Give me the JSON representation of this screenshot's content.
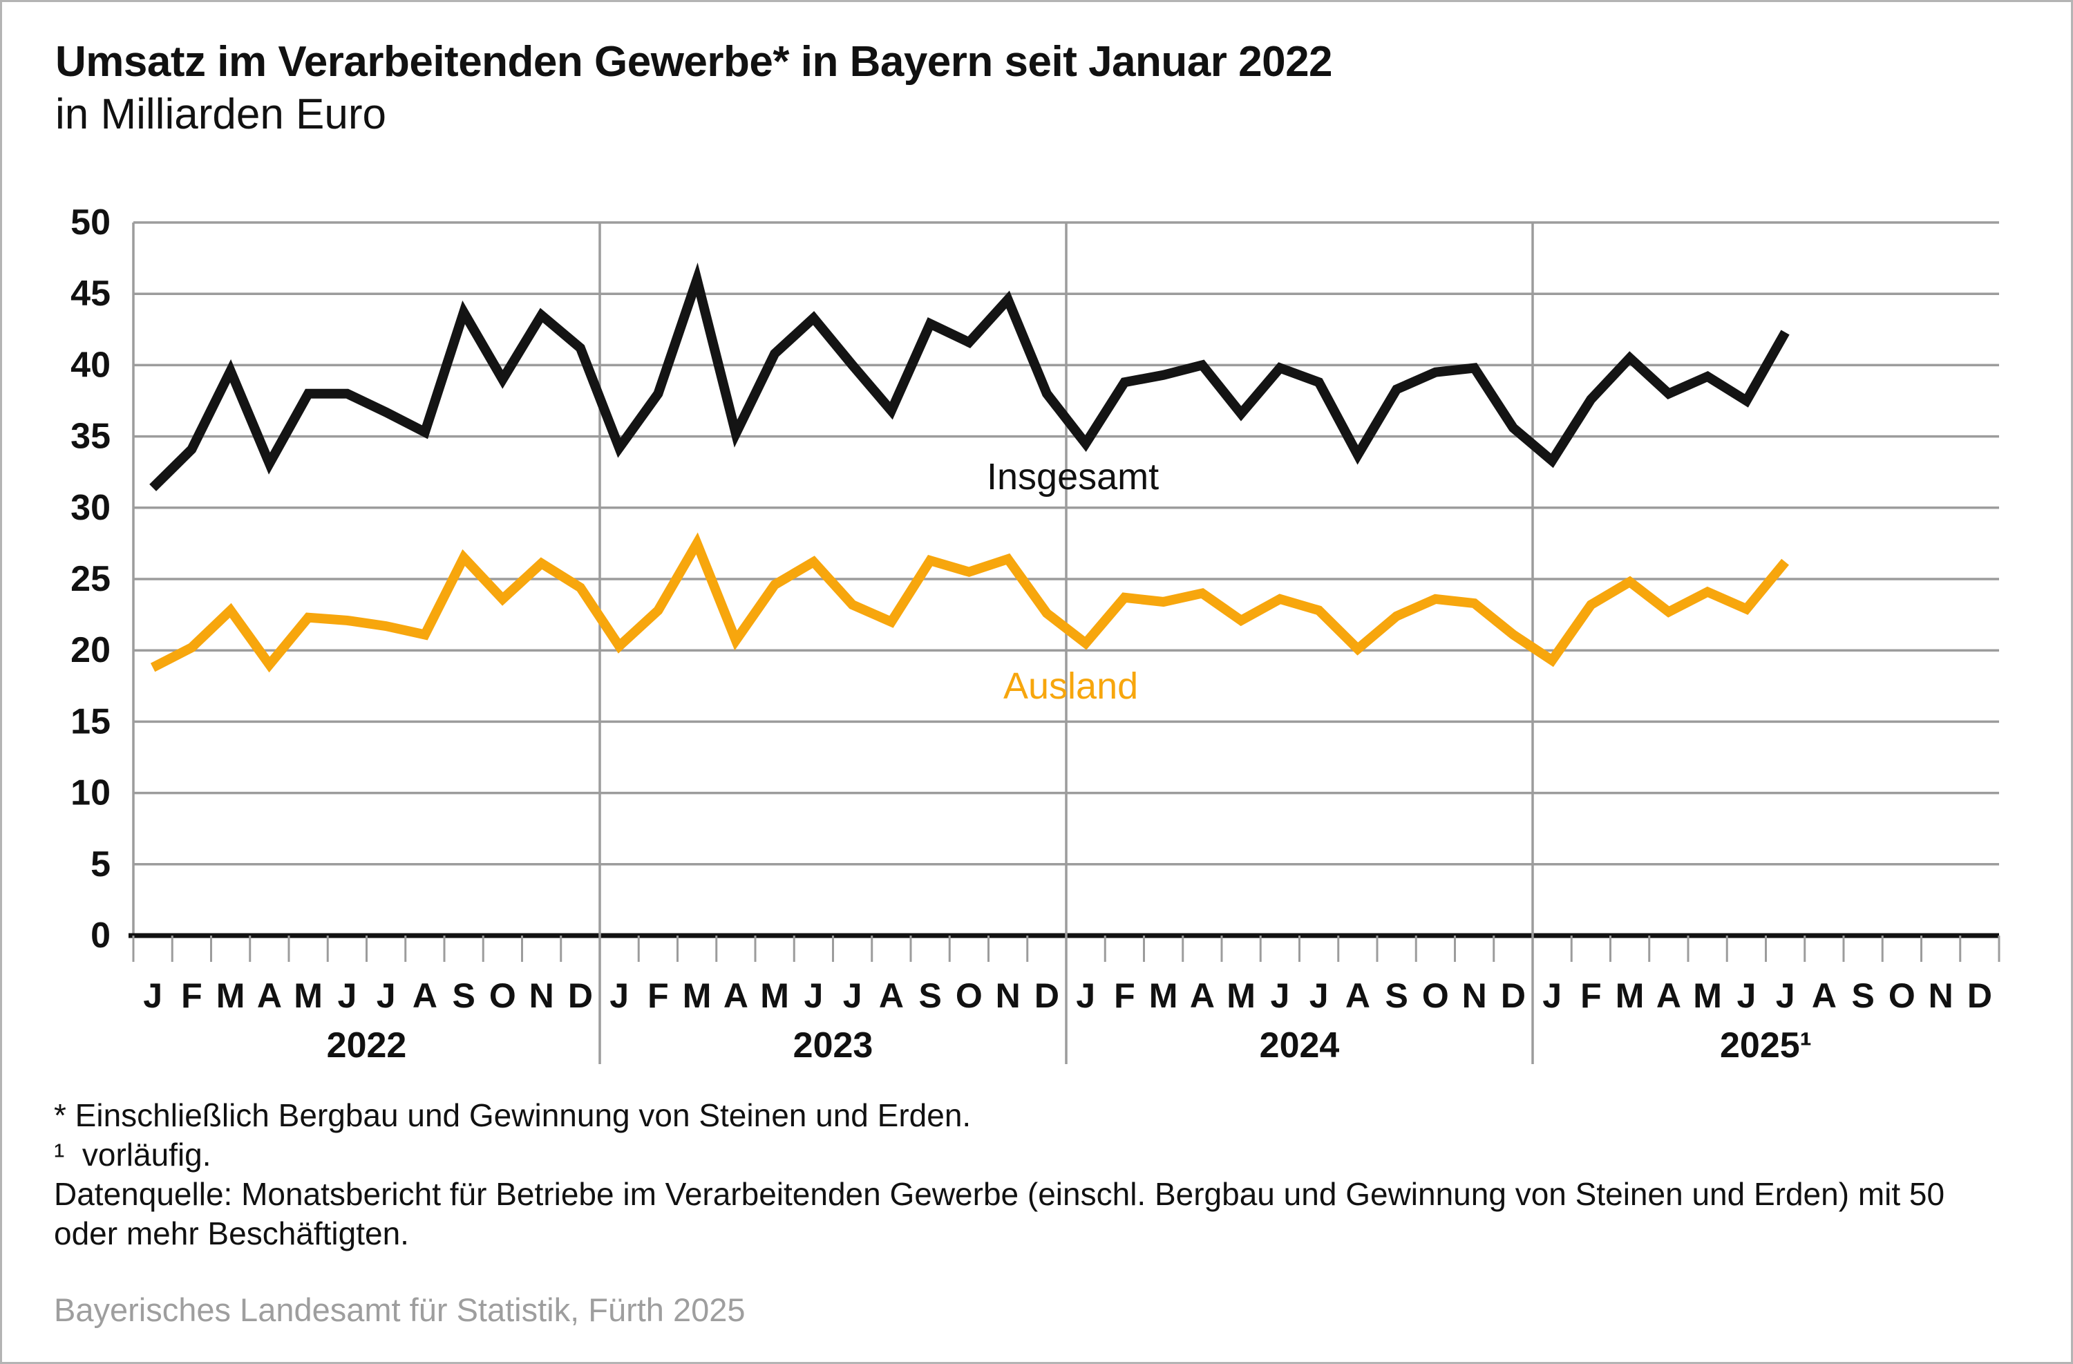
{
  "header": {
    "title": "Umsatz im Verarbeitenden Gewerbe* in Bayern seit Januar 2022",
    "subtitle": "in Milliarden Euro"
  },
  "chart_data": {
    "type": "line",
    "title": "Umsatz im Verarbeitenden Gewerbe in Bayern seit Januar 2022",
    "ylabel": "Milliarden Euro",
    "ylim": [
      0,
      50
    ],
    "grid": true,
    "legend_position": "inline-labels",
    "x_axis": {
      "month_letters": [
        "J",
        "F",
        "M",
        "A",
        "M",
        "J",
        "J",
        "A",
        "S",
        "O",
        "N",
        "D"
      ],
      "years": [
        "2022",
        "2023",
        "2024",
        "2025¹"
      ]
    },
    "y_axis": {
      "min": 0,
      "max": 50,
      "step": 5,
      "tick_labels": [
        "0",
        "5",
        "10",
        "15",
        "20",
        "25",
        "30",
        "35",
        "40",
        "45",
        "50"
      ]
    },
    "series": [
      {
        "name": "insgesamt",
        "label": "Insgesamt",
        "color": "#141414",
        "values": [
          31.4,
          34.1,
          39.6,
          33.1,
          38.0,
          38.0,
          36.7,
          35.3,
          43.7,
          39.0,
          43.5,
          41.2,
          34.2,
          38.0,
          46.0,
          35.2,
          40.8,
          43.3,
          40.0,
          36.8,
          42.9,
          41.6,
          44.6,
          38.0,
          34.5,
          38.8,
          39.3,
          40.0,
          36.6,
          39.8,
          38.8,
          33.7,
          38.3,
          39.5,
          39.8,
          35.6,
          33.3,
          37.6,
          40.5,
          38.0,
          39.2,
          37.5,
          42.3,
          null,
          null,
          null,
          null,
          null
        ]
      },
      {
        "name": "ausland",
        "label": "Ausland",
        "color": "#f7a60d",
        "values": [
          18.8,
          20.2,
          22.8,
          19.0,
          22.3,
          22.1,
          21.7,
          21.1,
          26.5,
          23.6,
          26.1,
          24.4,
          20.3,
          22.8,
          27.5,
          20.7,
          24.6,
          26.2,
          23.2,
          22.0,
          26.3,
          25.5,
          26.4,
          22.6,
          20.5,
          23.7,
          23.4,
          24.0,
          22.1,
          23.6,
          22.8,
          20.1,
          22.4,
          23.6,
          23.3,
          21.1,
          19.3,
          23.2,
          24.8,
          22.7,
          24.1,
          22.9,
          26.2,
          null,
          null,
          null,
          null,
          null
        ]
      }
    ]
  },
  "footnotes": {
    "asterisk": "* Einschließlich Bergbau und Gewinnung von Steinen und Erden.",
    "provisional": "¹  vorläufig.",
    "source_note": "Datenquelle: Monatsbericht für Betriebe im Verarbeitenden Gewerbe (einschl. Bergbau und Gewinnung von Steinen und Erden) mit 50 oder mehr Beschäftigten."
  },
  "source": "Bayerisches Landesamt für Statistik, Fürth 2025",
  "colors": {
    "accent_orange": "#f7a60d",
    "line_black": "#141414",
    "grid_gray": "#9c9c9c",
    "source_gray": "#9e9e9e",
    "frame_gray": "#b4b4b4"
  }
}
